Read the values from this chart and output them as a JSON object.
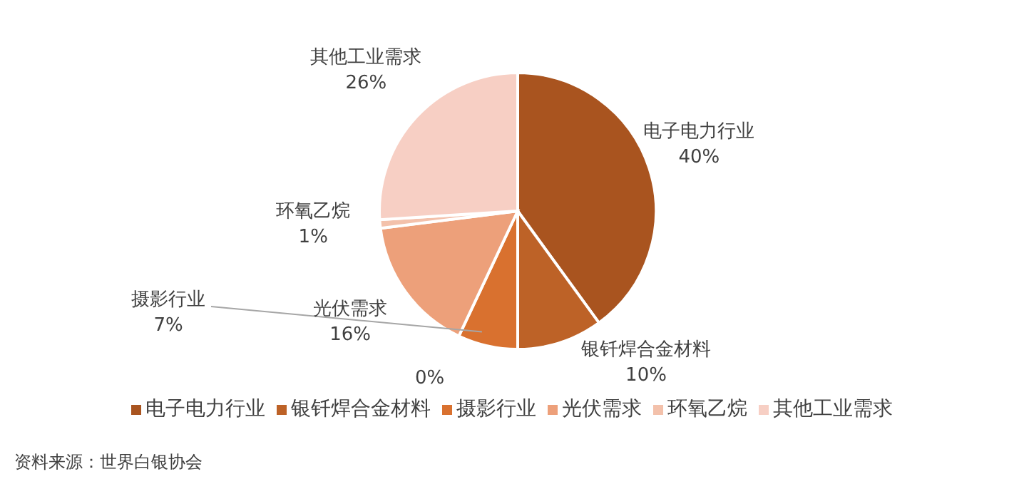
{
  "chart_data": {
    "type": "pie",
    "categories": [
      "电子电力行业",
      "银钎焊合金材料",
      "摄影行业",
      "光伏需求",
      "环氧乙烷",
      "其他工业需求"
    ],
    "values": [
      40,
      10,
      7,
      16,
      1,
      26
    ],
    "value_labels": [
      "40%",
      "10%",
      "7%",
      "16%",
      "1%",
      "26%"
    ],
    "colors": [
      "#a9541f",
      "#bd6227",
      "#d9712f",
      "#eda07a",
      "#f3c1ab",
      "#f7cfc4"
    ],
    "legend": "bottom",
    "annotations": [
      "0%",
      "资料来源：世界白银协会"
    ]
  }
}
